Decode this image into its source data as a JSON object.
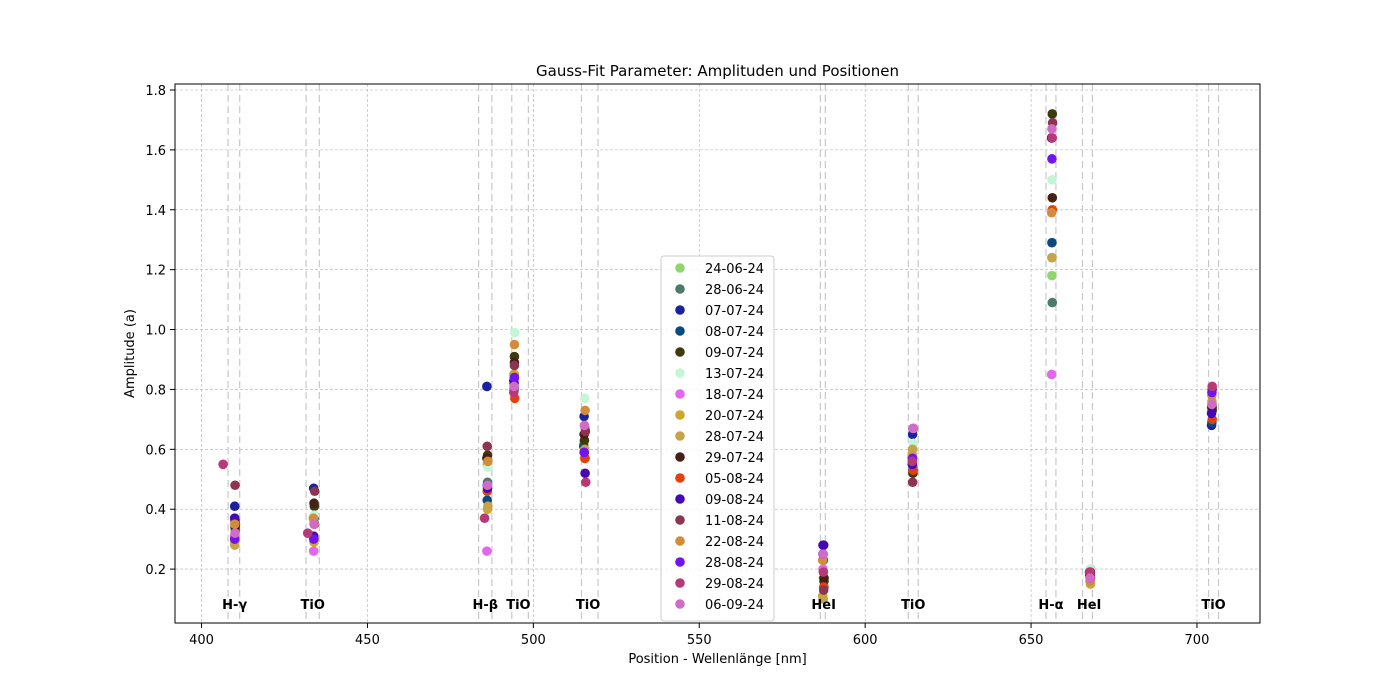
{
  "chart_data": {
    "type": "scatter",
    "title": "Gauss-Fit Parameter: Amplituden und Positionen",
    "xlabel": "Position - Wellenlänge [nm]",
    "ylabel": "Amplitude (a)",
    "xlim": [
      392,
      719
    ],
    "ylim": [
      0.02,
      1.82
    ],
    "xticks": [
      400,
      450,
      500,
      550,
      600,
      650,
      700
    ],
    "yticks": [
      0.2,
      0.4,
      0.6,
      0.8,
      1.0,
      1.2,
      1.4,
      1.6,
      1.8
    ],
    "grid": true,
    "legend_position": "center",
    "reference_lines": [
      408,
      411.5,
      431.5,
      435.5,
      483.5,
      487.5,
      493.5,
      498.5,
      514.5,
      519.5,
      586.5,
      588,
      613,
      616,
      654.5,
      657.5,
      665.5,
      668.5,
      703.5,
      706.5
    ],
    "line_labels": [
      {
        "text": "H-γ",
        "x": 410
      },
      {
        "text": "TiO",
        "x": 433.5
      },
      {
        "text": "H-β",
        "x": 485.5
      },
      {
        "text": "TiO",
        "x": 495.5
      },
      {
        "text": "TiO",
        "x": 516.5
      },
      {
        "text": "HeI",
        "x": 587.5
      },
      {
        "text": "TiO",
        "x": 614.5
      },
      {
        "text": "H-α",
        "x": 656
      },
      {
        "text": "HeI",
        "x": 667.5
      },
      {
        "text": "TiO",
        "x": 705
      }
    ],
    "series": [
      {
        "name": "24-06-24",
        "color": "#8fd66f",
        "points": [
          [
            410.1,
            0.35
          ],
          [
            433.9,
            0.36
          ],
          [
            486.1,
            0.55
          ],
          [
            494.2,
            0.81
          ],
          [
            515.2,
            0.62
          ],
          [
            587.4,
            0.17
          ],
          [
            614.2,
            0.55
          ],
          [
            656.3,
            1.18
          ],
          [
            667.8,
            0.17
          ],
          [
            704.5,
            0.73
          ]
        ]
      },
      {
        "name": "28-06-24",
        "color": "#4e7a6b",
        "points": [
          [
            410.2,
            0.33
          ],
          [
            434.0,
            0.35
          ],
          [
            486.2,
            0.49
          ],
          [
            494.3,
            0.8
          ],
          [
            515.4,
            0.59
          ],
          [
            587.6,
            0.14
          ],
          [
            614.4,
            0.54
          ],
          [
            656.4,
            1.09
          ],
          [
            667.9,
            0.2
          ],
          [
            704.6,
            0.74
          ]
        ]
      },
      {
        "name": "07-07-24",
        "color": "#1a22a0",
        "points": [
          [
            410.0,
            0.41
          ],
          [
            433.8,
            0.47
          ],
          [
            486.0,
            0.81
          ],
          [
            494.1,
            0.83
          ],
          [
            515.3,
            0.71
          ],
          [
            587.5,
            0.28
          ],
          [
            614.3,
            0.65
          ],
          [
            656.2,
            1.64
          ],
          [
            667.7,
            0.19
          ],
          [
            704.4,
            0.68
          ]
        ]
      },
      {
        "name": "08-07-24",
        "color": "#0b4a7e",
        "points": [
          [
            410.1,
            0.36
          ],
          [
            433.9,
            0.37
          ],
          [
            486.1,
            0.43
          ],
          [
            494.2,
            0.85
          ],
          [
            515.2,
            0.61
          ],
          [
            587.4,
            0.23
          ],
          [
            614.2,
            0.58
          ],
          [
            656.3,
            1.29
          ],
          [
            667.8,
            0.18
          ],
          [
            704.5,
            0.69
          ]
        ]
      },
      {
        "name": "09-07-24",
        "color": "#3d3a0c",
        "points": [
          [
            410.2,
            0.35
          ],
          [
            434.0,
            0.41
          ],
          [
            486.2,
            0.58
          ],
          [
            494.3,
            0.91
          ],
          [
            515.4,
            0.63
          ],
          [
            587.6,
            0.16
          ],
          [
            614.4,
            0.52
          ],
          [
            656.4,
            1.72
          ],
          [
            667.9,
            0.17
          ],
          [
            704.6,
            0.73
          ]
        ]
      },
      {
        "name": "13-07-24",
        "color": "#c4f5d6",
        "points": [
          [
            410.1,
            0.37
          ],
          [
            433.9,
            0.38
          ],
          [
            486.3,
            0.54
          ],
          [
            494.4,
            0.99
          ],
          [
            515.5,
            0.77
          ],
          [
            587.5,
            0.19
          ],
          [
            614.5,
            0.62
          ],
          [
            656.3,
            1.5
          ],
          [
            667.8,
            0.2
          ],
          [
            704.5,
            0.81
          ]
        ]
      },
      {
        "name": "18-07-24",
        "color": "#e466ea",
        "points": [
          [
            410.0,
            0.31
          ],
          [
            433.8,
            0.26
          ],
          [
            486.0,
            0.26
          ],
          [
            494.1,
            0.8
          ],
          [
            515.6,
            0.67
          ],
          [
            587.3,
            0.2
          ],
          [
            614.6,
            0.67
          ],
          [
            656.2,
            0.85
          ],
          [
            667.7,
            0.19
          ],
          [
            704.4,
            0.74
          ]
        ]
      },
      {
        "name": "20-07-24",
        "color": "#cda72a",
        "points": [
          [
            410.0,
            0.29
          ],
          [
            433.9,
            0.29
          ],
          [
            486.2,
            0.4
          ],
          [
            494.3,
            0.85
          ],
          [
            515.4,
            0.57
          ],
          [
            587.2,
            0.11
          ],
          [
            614.2,
            0.58
          ],
          [
            656.3,
            1.24
          ],
          [
            667.8,
            0.16
          ],
          [
            704.6,
            0.75
          ]
        ]
      },
      {
        "name": "28-07-24",
        "color": "#c6a24a",
        "points": [
          [
            410.0,
            0.28
          ],
          [
            434.0,
            0.3
          ],
          [
            486.3,
            0.41
          ],
          [
            494.2,
            0.84
          ],
          [
            515.5,
            0.6
          ],
          [
            587.4,
            0.1
          ],
          [
            614.3,
            0.6
          ],
          [
            656.3,
            1.24
          ],
          [
            667.9,
            0.15
          ],
          [
            704.5,
            0.76
          ]
        ]
      },
      {
        "name": "29-07-24",
        "color": "#452018",
        "points": [
          [
            410.1,
            0.34
          ],
          [
            433.9,
            0.42
          ],
          [
            486.0,
            0.57
          ],
          [
            494.3,
            0.89
          ],
          [
            515.3,
            0.65
          ],
          [
            587.6,
            0.17
          ],
          [
            614.4,
            0.53
          ],
          [
            656.4,
            1.44
          ],
          [
            667.8,
            0.18
          ],
          [
            704.5,
            0.74
          ]
        ]
      },
      {
        "name": "05-08-24",
        "color": "#e2410f",
        "points": [
          [
            410.2,
            0.36
          ],
          [
            434.0,
            0.35
          ],
          [
            486.1,
            0.46
          ],
          [
            494.4,
            0.77
          ],
          [
            515.6,
            0.57
          ],
          [
            587.5,
            0.14
          ],
          [
            614.5,
            0.53
          ],
          [
            656.4,
            1.4
          ],
          [
            667.9,
            0.18
          ],
          [
            704.6,
            0.7
          ]
        ]
      },
      {
        "name": "09-08-24",
        "color": "#4508b5",
        "points": [
          [
            410.0,
            0.37
          ],
          [
            433.8,
            0.31
          ],
          [
            486.2,
            0.47
          ],
          [
            494.2,
            0.82
          ],
          [
            515.6,
            0.52
          ],
          [
            587.3,
            0.28
          ],
          [
            614.2,
            0.55
          ],
          [
            656.2,
            1.64
          ],
          [
            667.7,
            0.18
          ],
          [
            704.4,
            0.72
          ]
        ]
      },
      {
        "name": "11-08-24",
        "color": "#8c3450",
        "points": [
          [
            410.1,
            0.48
          ],
          [
            434.1,
            0.46
          ],
          [
            486.1,
            0.61
          ],
          [
            494.3,
            0.88
          ],
          [
            515.7,
            0.66
          ],
          [
            587.5,
            0.13
          ],
          [
            614.3,
            0.49
          ],
          [
            656.5,
            1.69
          ],
          [
            667.9,
            0.19
          ],
          [
            704.6,
            0.8
          ]
        ]
      },
      {
        "name": "22-08-24",
        "color": "#d38c39",
        "points": [
          [
            410.0,
            0.35
          ],
          [
            433.7,
            0.37
          ],
          [
            486.3,
            0.56
          ],
          [
            494.3,
            0.95
          ],
          [
            515.6,
            0.73
          ],
          [
            587.2,
            0.23
          ],
          [
            614.1,
            0.57
          ],
          [
            656.2,
            1.39
          ],
          [
            667.8,
            0.16
          ],
          [
            704.5,
            0.78
          ]
        ]
      },
      {
        "name": "28-08-24",
        "color": "#7214f0",
        "points": [
          [
            410.0,
            0.3
          ],
          [
            433.8,
            0.3
          ],
          [
            486.1,
            0.48
          ],
          [
            494.3,
            0.84
          ],
          [
            515.3,
            0.59
          ],
          [
            587.3,
            0.25
          ],
          [
            614.3,
            0.57
          ],
          [
            656.3,
            1.57
          ],
          [
            667.8,
            0.17
          ],
          [
            704.5,
            0.79
          ]
        ]
      },
      {
        "name": "29-08-24",
        "color": "#b73a77",
        "points": [
          [
            406.5,
            0.55
          ],
          [
            432.0,
            0.32
          ],
          [
            485.3,
            0.37
          ],
          [
            494.1,
            0.79
          ],
          [
            515.8,
            0.49
          ],
          [
            587.4,
            0.19
          ],
          [
            614.2,
            0.56
          ],
          [
            656.4,
            1.64
          ],
          [
            667.6,
            0.19
          ],
          [
            704.6,
            0.81
          ]
        ]
      },
      {
        "name": "06-09-24",
        "color": "#d06bc6",
        "points": [
          [
            410.1,
            0.32
          ],
          [
            433.9,
            0.35
          ],
          [
            486.2,
            0.48
          ],
          [
            494.2,
            0.81
          ],
          [
            515.4,
            0.68
          ],
          [
            587.4,
            0.25
          ],
          [
            614.4,
            0.67
          ],
          [
            656.3,
            1.67
          ],
          [
            667.8,
            0.17
          ],
          [
            704.5,
            0.75
          ]
        ]
      }
    ]
  }
}
